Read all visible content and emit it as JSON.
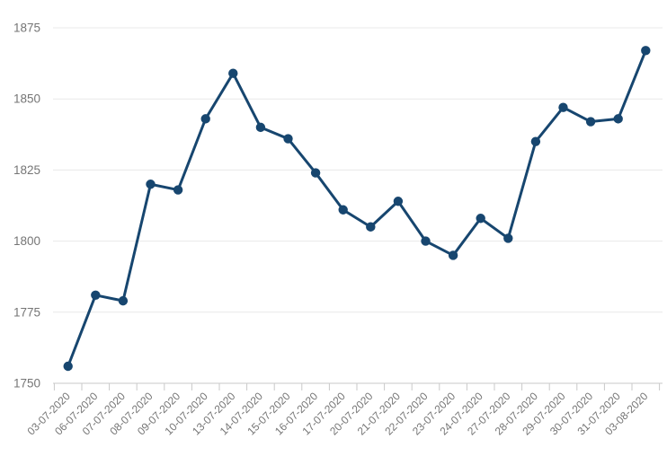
{
  "chart": {
    "title": "",
    "background": "#ffffff"
  },
  "chart_data": {
    "type": "line",
    "title": "",
    "xlabel": "",
    "ylabel": "",
    "x": [
      "03-07-2020",
      "06-07-2020",
      "07-07-2020",
      "08-07-2020",
      "09-07-2020",
      "10-07-2020",
      "13-07-2020",
      "14-07-2020",
      "15-07-2020",
      "16-07-2020",
      "17-07-2020",
      "20-07-2020",
      "21-07-2020",
      "22-07-2020",
      "23-07-2020",
      "24-07-2020",
      "27-07-2020",
      "28-07-2020",
      "29-07-2020",
      "30-07-2020",
      "31-07-2020",
      "03-08-2020"
    ],
    "series": [
      {
        "name": "value",
        "color": "#17466f",
        "values": [
          1756,
          1781,
          1779,
          1820,
          1818,
          1843,
          1859,
          1840,
          1836,
          1824,
          1811,
          1805,
          1814,
          1800,
          1795,
          1808,
          1801,
          1835,
          1847,
          1842,
          1843,
          1867
        ]
      }
    ],
    "ylim": [
      1750,
      1875
    ],
    "y_ticks": [
      1750,
      1775,
      1800,
      1825,
      1850,
      1875
    ],
    "grid": "horizontal",
    "legend": "none",
    "marker": "filled-circle",
    "x_label_rotation_deg": -45,
    "colors": {
      "line": "#17466f",
      "marker": "#17466f",
      "grid": "#e8e8e8",
      "axis": "#c9c9c9",
      "tick_labels": "#757575",
      "background": "#ffffff"
    }
  }
}
